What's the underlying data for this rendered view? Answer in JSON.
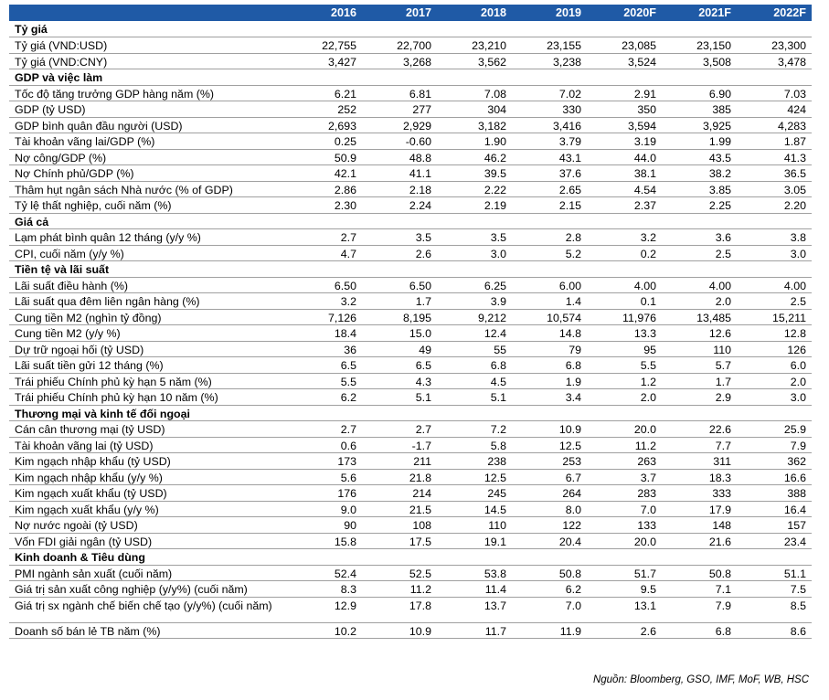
{
  "header": {
    "label": "",
    "years": [
      "2016",
      "2017",
      "2018",
      "2019",
      "2020F",
      "2021F",
      "2022F"
    ]
  },
  "sections": [
    {
      "title": "Tỷ giá",
      "rows": [
        {
          "label": "Tỷ giá (VND:USD)",
          "values": [
            "22,755",
            "22,700",
            "23,210",
            "23,155",
            "23,085",
            "23,150",
            "23,300"
          ]
        },
        {
          "label": "Tỷ giá (VND:CNY)",
          "values": [
            "3,427",
            "3,268",
            "3,562",
            "3,238",
            "3,524",
            "3,508",
            "3,478"
          ]
        }
      ]
    },
    {
      "title": "GDP và việc làm",
      "rows": [
        {
          "label": "Tốc độ tăng trưởng GDP hàng năm (%)",
          "values": [
            "6.21",
            "6.81",
            "7.08",
            "7.02",
            "2.91",
            "6.90",
            "7.03"
          ]
        },
        {
          "label": "GDP (tỷ USD)",
          "values": [
            "252",
            "277",
            "304",
            "330",
            "350",
            "385",
            "424"
          ]
        },
        {
          "label": "GDP bình quân đầu người (USD)",
          "values": [
            "2,693",
            "2,929",
            "3,182",
            "3,416",
            "3,594",
            "3,925",
            "4,283"
          ]
        },
        {
          "label": "Tài khoản vãng lai/GDP (%)",
          "values": [
            "0.25",
            "-0.60",
            "1.90",
            "3.79",
            "3.19",
            "1.99",
            "1.87"
          ]
        },
        {
          "label": "Nợ công/GDP (%)",
          "values": [
            "50.9",
            "48.8",
            "46.2",
            "43.1",
            "44.0",
            "43.5",
            "41.3"
          ]
        },
        {
          "label": "Nợ Chính phủ/GDP (%)",
          "values": [
            "42.1",
            "41.1",
            "39.5",
            "37.6",
            "38.1",
            "38.2",
            "36.5"
          ]
        },
        {
          "label": "Thâm hụt ngân sách Nhà nước (% of GDP)",
          "values": [
            "2.86",
            "2.18",
            "2.22",
            "2.65",
            "4.54",
            "3.85",
            "3.05"
          ]
        },
        {
          "label": "Tỷ lệ thất nghiệp, cuối năm (%)",
          "values": [
            "2.30",
            "2.24",
            "2.19",
            "2.15",
            "2.37",
            "2.25",
            "2.20"
          ]
        }
      ]
    },
    {
      "title": "Giá cả",
      "rows": [
        {
          "label": "Lạm phát bình quân 12 tháng (y/y %)",
          "values": [
            "2.7",
            "3.5",
            "3.5",
            "2.8",
            "3.2",
            "3.6",
            "3.8"
          ]
        },
        {
          "label": "CPI, cuối năm (y/y %)",
          "values": [
            "4.7",
            "2.6",
            "3.0",
            "5.2",
            "0.2",
            "2.5",
            "3.0"
          ]
        }
      ]
    },
    {
      "title": "Tiền tệ và lãi suất",
      "rows": [
        {
          "label": "Lãi suất điều hành (%)",
          "values": [
            "6.50",
            "6.50",
            "6.25",
            "6.00",
            "4.00",
            "4.00",
            "4.00"
          ]
        },
        {
          "label": "Lãi suất qua đêm liên ngân hàng (%)",
          "values": [
            "3.2",
            "1.7",
            "3.9",
            "1.4",
            "0.1",
            "2.0",
            "2.5"
          ]
        },
        {
          "label": "Cung tiền M2 (nghìn tỷ đồng)",
          "values": [
            "7,126",
            "8,195",
            "9,212",
            "10,574",
            "11,976",
            "13,485",
            "15,211"
          ]
        },
        {
          "label": "Cung tiền M2 (y/y %)",
          "values": [
            "18.4",
            "15.0",
            "12.4",
            "14.8",
            "13.3",
            "12.6",
            "12.8"
          ]
        },
        {
          "label": "Dự trữ ngoại hối (tỷ USD)",
          "values": [
            "36",
            "49",
            "55",
            "79",
            "95",
            "110",
            "126"
          ]
        },
        {
          "label": "Lãi suất tiền gửi 12 tháng (%)",
          "values": [
            "6.5",
            "6.5",
            "6.8",
            "6.8",
            "5.5",
            "5.7",
            "6.0"
          ]
        },
        {
          "label": "Trái phiếu Chính phủ kỳ hạn 5 năm (%)",
          "values": [
            "5.5",
            "4.3",
            "4.5",
            "1.9",
            "1.2",
            "1.7",
            "2.0"
          ]
        },
        {
          "label": "Trái phiếu Chính phủ kỳ hạn 10 năm (%)",
          "values": [
            "6.2",
            "5.1",
            "5.1",
            "3.4",
            "2.0",
            "2.9",
            "3.0"
          ]
        }
      ]
    },
    {
      "title": "Thương mại và kinh tế đối ngoại",
      "rows": [
        {
          "label": "Cán cân thương mại (tỷ USD)",
          "values": [
            "2.7",
            "2.7",
            "7.2",
            "10.9",
            "20.0",
            "22.6",
            "25.9"
          ]
        },
        {
          "label": "Tài khoản vãng lai (tỷ USD)",
          "values": [
            "0.6",
            "-1.7",
            "5.8",
            "12.5",
            "11.2",
            "7.7",
            "7.9"
          ]
        },
        {
          "label": "Kim ngạch nhập khẩu (tỷ USD)",
          "values": [
            "173",
            "211",
            "238",
            "253",
            "263",
            "311",
            "362"
          ]
        },
        {
          "label": "Kim ngạch nhập khẩu (y/y %)",
          "values": [
            "5.6",
            "21.8",
            "12.5",
            "6.7",
            "3.7",
            "18.3",
            "16.6"
          ]
        },
        {
          "label": "Kim ngạch xuất khẩu (tỷ USD)",
          "values": [
            "176",
            "214",
            "245",
            "264",
            "283",
            "333",
            "388"
          ]
        },
        {
          "label": "Kim ngạch xuất khẩu (y/y %)",
          "values": [
            "9.0",
            "21.5",
            "14.5",
            "8.0",
            "7.0",
            "17.9",
            "16.4"
          ]
        },
        {
          "label": "Nợ nước ngoài (tỷ USD)",
          "values": [
            "90",
            "108",
            "110",
            "122",
            "133",
            "148",
            "157"
          ]
        },
        {
          "label": "Vốn FDI giải ngân (tỷ USD)",
          "values": [
            "15.8",
            "17.5",
            "19.1",
            "20.4",
            "20.0",
            "21.6",
            "23.4"
          ]
        }
      ]
    },
    {
      "title": "Kinh doanh & Tiêu dùng",
      "rows": [
        {
          "label": "PMI ngành sản xuất (cuối năm)",
          "values": [
            "52.4",
            "52.5",
            "53.8",
            "50.8",
            "51.7",
            "50.8",
            "51.1"
          ]
        },
        {
          "label": "Giá trị sản xuất công nghiệp (y/y%) (cuối năm)",
          "values": [
            "8.3",
            "11.2",
            "11.4",
            "6.2",
            "9.5",
            "7.1",
            "7.5"
          ]
        },
        {
          "label": "Giá trị sx ngành chế biến chế tạo (y/y%) (cuối năm)",
          "values": [
            "12.9",
            "17.8",
            "13.7",
            "7.0",
            "13.1",
            "7.9",
            "8.5"
          ],
          "tall": true
        },
        {
          "label": "Doanh số bán lẻ TB năm (%)",
          "values": [
            "10.2",
            "10.9",
            "11.7",
            "11.9",
            "2.6",
            "6.8",
            "8.6"
          ]
        }
      ]
    }
  ],
  "source": "Nguồn: Bloomberg, GSO, IMF, MoF, WB, HSC",
  "colors": {
    "header_bg": "#1f5aa6",
    "header_text": "#ffffff",
    "rule": "#a0a0a0"
  }
}
